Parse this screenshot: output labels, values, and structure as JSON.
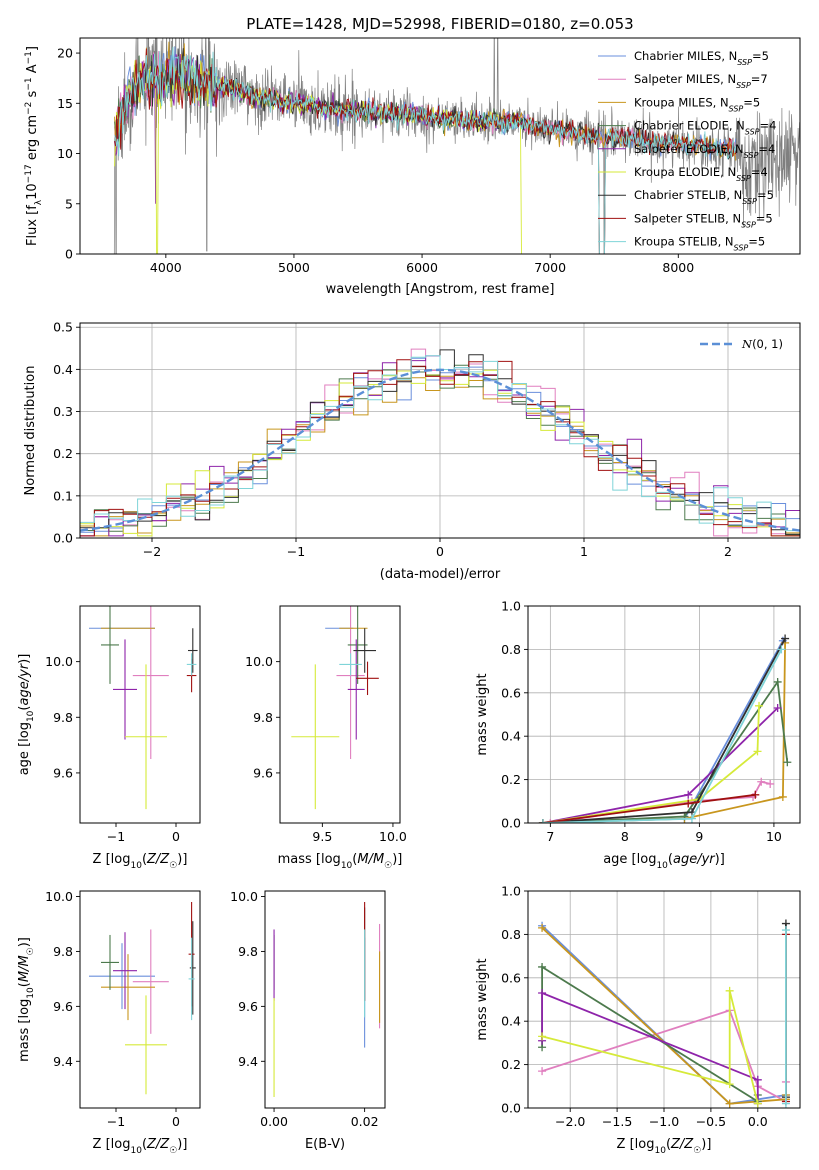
{
  "figure": {
    "title": "PLATE=1428, MJD=52998, FIBERID=0180, z=0.053"
  },
  "model_colors": {
    "Chabrier MILES": "#6a8fdc",
    "Salpeter MILES": "#e07fbf",
    "Kroupa MILES": "#c8961e",
    "Chabrier ELODIE": "#4d7a4d",
    "Salpeter ELODIE": "#8e24aa",
    "Kroupa ELODIE": "#d6ea3a",
    "Chabrier STELIB": "#2f2f2f",
    "Salpeter STELIB": "#a01010",
    "Kroupa STELIB": "#7fd4d8",
    "data": "#7f7f7f",
    "overlay_orange": "#e8742a",
    "gaussian": "#5b8fd6"
  },
  "chart_data": [
    {
      "id": "spectrum",
      "type": "line",
      "title": "PLATE=1428, MJD=52998, FIBERID=0180, z=0.053",
      "xlabel": "wavelength [Angstrom, rest frame]",
      "ylabel": "Flux [f_λ 10^-17 erg cm^-2 s^-1 A^-1]",
      "xlim": [
        3330,
        8950
      ],
      "ylim": [
        0,
        21.5
      ],
      "xticks": [
        4000,
        5000,
        6000,
        7000,
        8000
      ],
      "yticks": [
        0,
        5,
        10,
        15,
        20
      ],
      "grid": false,
      "legend_position": "top-right",
      "legend": [
        {
          "label": "Chabrier MILES, N",
          "sub": "SSP",
          "suffix": "=5",
          "color": "#6a8fdc"
        },
        {
          "label": "Salpeter MILES, N",
          "sub": "SSP",
          "suffix": "=7",
          "color": "#e07fbf"
        },
        {
          "label": "Kroupa MILES, N",
          "sub": "SSP",
          "suffix": "=5",
          "color": "#c8961e"
        },
        {
          "label": "Chabrier ELODIE, N",
          "sub": "SSP",
          "suffix": "=4",
          "color": "#4d7a4d"
        },
        {
          "label": "Salpeter ELODIE, N",
          "sub": "SSP",
          "suffix": "=4",
          "color": "#8e24aa"
        },
        {
          "label": "Kroupa ELODIE, N",
          "sub": "SSP",
          "suffix": "=4",
          "color": "#d6ea3a"
        },
        {
          "label": "Chabrier STELIB, N",
          "sub": "SSP",
          "suffix": "=5",
          "color": "#2f2f2f"
        },
        {
          "label": "Salpeter STELIB, N",
          "sub": "SSP",
          "suffix": "=5",
          "color": "#a01010"
        },
        {
          "label": "Kroupa STELIB, N",
          "sub": "SSP",
          "suffix": "=5",
          "color": "#7fd4d8"
        }
      ],
      "continuum": [
        [
          3600,
          11.5
        ],
        [
          3700,
          15.5
        ],
        [
          3800,
          17.0
        ],
        [
          3900,
          17.5
        ],
        [
          3950,
          16.5
        ],
        [
          4000,
          18.0
        ],
        [
          4100,
          17.8
        ],
        [
          4300,
          16.8
        ],
        [
          4500,
          16.6
        ],
        [
          4700,
          15.6
        ],
        [
          4900,
          15.2
        ],
        [
          5100,
          14.9
        ],
        [
          5300,
          14.4
        ],
        [
          5500,
          14.3
        ],
        [
          5700,
          14.0
        ],
        [
          5900,
          13.9
        ],
        [
          6100,
          13.6
        ],
        [
          6300,
          13.3
        ],
        [
          6500,
          13.2
        ],
        [
          6700,
          13.2
        ],
        [
          6900,
          12.7
        ],
        [
          7100,
          12.2
        ],
        [
          7300,
          11.8
        ],
        [
          7400,
          11.6
        ],
        [
          7600,
          11.6
        ],
        [
          7800,
          11.1
        ],
        [
          8000,
          11.0
        ],
        [
          8200,
          10.8
        ],
        [
          8400,
          10.4
        ]
      ],
      "data_range": [
        3580,
        9200
      ],
      "model_range": [
        3600,
        8450
      ]
    },
    {
      "id": "residuals",
      "type": "histogram",
      "xlabel": "(data-model)/error",
      "ylabel": "Normed distribution",
      "xlim": [
        -2.5,
        2.5
      ],
      "ylim": [
        0,
        0.51
      ],
      "xticks": [
        -2,
        -1,
        0,
        1,
        2
      ],
      "yticks": [
        0.0,
        0.1,
        0.2,
        0.3,
        0.4,
        0.5
      ],
      "grid": true,
      "legend_position": "top-right",
      "gaussian_label": "N(0,1)",
      "bins": 50
    },
    {
      "id": "age-vs-Z",
      "type": "errorbar",
      "xlabel": "Z [log10(Z/Z☉)]",
      "ylabel": "age [log10(age/yr)]",
      "xlim": [
        -1.6,
        0.4
      ],
      "ylim": [
        9.42,
        10.2
      ],
      "xticks": [
        -1,
        0
      ],
      "yticks": [
        9.6,
        9.8,
        10.0
      ],
      "grid": false,
      "points": [
        {
          "model": "Chabrier MILES",
          "x": -0.9,
          "y": 10.12,
          "xerr": 0.55,
          "yerr": 0.0
        },
        {
          "model": "Salpeter MILES",
          "x": -0.42,
          "y": 9.95,
          "xerr": 0.3,
          "yerr": 0.3
        },
        {
          "model": "Kroupa MILES",
          "x": -0.8,
          "y": 10.12,
          "xerr": 0.45,
          "yerr": 0.0
        },
        {
          "model": "Chabrier ELODIE",
          "x": -1.1,
          "y": 10.06,
          "xerr": 0.15,
          "yerr": 0.14
        },
        {
          "model": "Salpeter ELODIE",
          "x": -0.85,
          "y": 9.9,
          "xerr": 0.2,
          "yerr": 0.18
        },
        {
          "model": "Kroupa ELODIE",
          "x": -0.5,
          "y": 9.73,
          "xerr": 0.35,
          "yerr": 0.26
        },
        {
          "model": "Chabrier STELIB",
          "x": 0.28,
          "y": 10.04,
          "xerr": 0.08,
          "yerr": 0.08
        },
        {
          "model": "Salpeter STELIB",
          "x": 0.26,
          "y": 9.95,
          "xerr": 0.08,
          "yerr": 0.06
        },
        {
          "model": "Kroupa STELIB",
          "x": 0.26,
          "y": 9.99,
          "xerr": 0.08,
          "yerr": 0.04
        }
      ]
    },
    {
      "id": "age-vs-mass",
      "type": "errorbar",
      "xlabel": "mass [log10(M/M☉)]",
      "ylabel": "",
      "xlim": [
        9.2,
        10.05
      ],
      "ylim": [
        9.42,
        10.2
      ],
      "xticks": [
        9.5,
        10.0
      ],
      "yticks": [
        9.6,
        9.8,
        10.0
      ],
      "grid": false,
      "points": [
        {
          "model": "Chabrier MILES",
          "x": 9.62,
          "y": 10.12,
          "xerr": 0.1,
          "yerr": 0.0
        },
        {
          "model": "Salpeter MILES",
          "x": 9.7,
          "y": 9.95,
          "xerr": 0.1,
          "yerr": 0.3
        },
        {
          "model": "Kroupa MILES",
          "x": 9.72,
          "y": 10.12,
          "xerr": 0.1,
          "yerr": 0.0
        },
        {
          "model": "Chabrier ELODIE",
          "x": 9.75,
          "y": 10.06,
          "xerr": 0.07,
          "yerr": 0.14
        },
        {
          "model": "Salpeter ELODIE",
          "x": 9.74,
          "y": 9.9,
          "xerr": 0.06,
          "yerr": 0.18
        },
        {
          "model": "Kroupa ELODIE",
          "x": 9.45,
          "y": 9.73,
          "xerr": 0.17,
          "yerr": 0.26
        },
        {
          "model": "Chabrier STELIB",
          "x": 9.8,
          "y": 10.04,
          "xerr": 0.08,
          "yerr": 0.08
        },
        {
          "model": "Salpeter STELIB",
          "x": 9.82,
          "y": 9.94,
          "xerr": 0.08,
          "yerr": 0.06
        },
        {
          "model": "Kroupa STELIB",
          "x": 9.7,
          "y": 9.99,
          "xerr": 0.08,
          "yerr": 0.04
        }
      ]
    },
    {
      "id": "mass-weight-vs-age",
      "type": "line",
      "xlabel": "age [log10(age/yr)]",
      "ylabel": "mass weight",
      "xlim": [
        6.7,
        10.35
      ],
      "ylim": [
        0,
        1.0
      ],
      "xticks": [
        7,
        8,
        9,
        10
      ],
      "yticks": [
        0.0,
        0.2,
        0.4,
        0.6,
        0.8,
        1.0
      ],
      "grid": true,
      "series": [
        {
          "model": "Chabrier MILES",
          "x": [
            6.9,
            8.8,
            10.12
          ],
          "y": [
            0.0,
            0.02,
            0.84
          ]
        },
        {
          "model": "Salpeter MILES",
          "x": [
            7.0,
            8.9,
            9.72,
            9.83,
            9.95
          ],
          "y": [
            0.0,
            0.1,
            0.12,
            0.19,
            0.18
          ]
        },
        {
          "model": "Kroupa MILES",
          "x": [
            6.9,
            8.8,
            10.12,
            10.15
          ],
          "y": [
            0.0,
            0.02,
            0.12,
            0.83
          ]
        },
        {
          "model": "Chabrier ELODIE",
          "x": [
            6.9,
            8.8,
            10.05,
            10.18
          ],
          "y": [
            0.0,
            0.03,
            0.65,
            0.28
          ]
        },
        {
          "model": "Salpeter ELODIE",
          "x": [
            6.9,
            8.85,
            10.05
          ],
          "y": [
            0.0,
            0.13,
            0.53
          ]
        },
        {
          "model": "Kroupa ELODIE",
          "x": [
            6.9,
            9.0,
            9.78,
            9.8
          ],
          "y": [
            0.0,
            0.11,
            0.33,
            0.54
          ]
        },
        {
          "model": "Chabrier STELIB",
          "x": [
            6.9,
            8.9,
            10.15
          ],
          "y": [
            0.0,
            0.05,
            0.85
          ]
        },
        {
          "model": "Salpeter STELIB",
          "x": [
            6.9,
            8.85,
            9.75
          ],
          "y": [
            0.0,
            0.09,
            0.13
          ]
        },
        {
          "model": "Kroupa STELIB",
          "x": [
            6.9,
            8.9,
            10.1
          ],
          "y": [
            0.0,
            0.02,
            0.8
          ]
        }
      ]
    },
    {
      "id": "mass-vs-Z",
      "type": "errorbar",
      "xlabel": "Z [log10(Z/Z☉)]",
      "ylabel": "mass [log10(M/M☉)]",
      "xlim": [
        -1.6,
        0.4
      ],
      "ylim": [
        9.23,
        10.02
      ],
      "xticks": [
        -1,
        0
      ],
      "yticks": [
        9.4,
        9.6,
        9.8,
        10.0
      ],
      "grid": false,
      "points": [
        {
          "model": "Chabrier MILES",
          "x": -0.9,
          "y": 9.71,
          "xerr": 0.55,
          "yerr": 0.12
        },
        {
          "model": "Salpeter MILES",
          "x": -0.42,
          "y": 9.69,
          "xerr": 0.3,
          "yerr": 0.19
        },
        {
          "model": "Kroupa MILES",
          "x": -0.8,
          "y": 9.67,
          "xerr": 0.45,
          "yerr": 0.12
        },
        {
          "model": "Chabrier ELODIE",
          "x": -1.1,
          "y": 9.76,
          "xerr": 0.15,
          "yerr": 0.1
        },
        {
          "model": "Salpeter ELODIE",
          "x": -0.85,
          "y": 9.73,
          "xerr": 0.2,
          "yerr": 0.14
        },
        {
          "model": "Kroupa ELODIE",
          "x": -0.5,
          "y": 9.46,
          "xerr": 0.35,
          "yerr": 0.18
        },
        {
          "model": "Chabrier STELIB",
          "x": 0.28,
          "y": 9.74,
          "xerr": 0.05,
          "yerr": 0.17
        },
        {
          "model": "Salpeter STELIB",
          "x": 0.26,
          "y": 9.79,
          "xerr": 0.05,
          "yerr": 0.19
        },
        {
          "model": "Kroupa STELIB",
          "x": 0.26,
          "y": 9.7,
          "xerr": 0.05,
          "yerr": 0.15
        }
      ]
    },
    {
      "id": "mass-vs-ebv",
      "type": "errorbar",
      "xlabel": "E(B-V)",
      "ylabel": "",
      "xlim": [
        -0.002,
        0.0245
      ],
      "ylim": [
        9.23,
        10.02
      ],
      "xticks": [
        0.0,
        0.02
      ],
      "yticks": [
        9.4,
        9.6,
        9.8,
        10.0
      ],
      "grid": false,
      "points": [
        {
          "model": "Chabrier MILES",
          "x": 0.02,
          "y": 9.65,
          "xerr": 0.0,
          "yerr": 0.2
        },
        {
          "model": "Salpeter MILES",
          "x": 0.0233,
          "y": 9.71,
          "xerr": 0.0,
          "yerr": 0.19
        },
        {
          "model": "Kroupa MILES",
          "x": 0.0233,
          "y": 9.67,
          "xerr": 0.0,
          "yerr": 0.13
        },
        {
          "model": "Chabrier ELODIE",
          "x": 0.0,
          "y": 9.76,
          "xerr": 0.0,
          "yerr": 0.1
        },
        {
          "model": "Salpeter ELODIE",
          "x": 0.0,
          "y": 9.75,
          "xerr": 0.0,
          "yerr": 0.13
        },
        {
          "model": "Kroupa ELODIE",
          "x": 0.0,
          "y": 9.45,
          "xerr": 0.0,
          "yerr": 0.18
        },
        {
          "model": "Chabrier STELIB",
          "x": 0.02,
          "y": 9.79,
          "xerr": 0.0,
          "yerr": 0.17
        },
        {
          "model": "Salpeter STELIB",
          "x": 0.02,
          "y": 9.8,
          "xerr": 0.0,
          "yerr": 0.18
        },
        {
          "model": "Kroupa STELIB",
          "x": 0.02,
          "y": 9.72,
          "xerr": 0.0,
          "yerr": 0.16
        }
      ]
    },
    {
      "id": "mass-weight-vs-Z",
      "type": "line",
      "xlabel": "Z [log10(Z/Z☉)]",
      "ylabel": "mass weight",
      "xlim": [
        -2.45,
        0.45
      ],
      "ylim": [
        0,
        1.0
      ],
      "xticks": [
        -2.0,
        -1.5,
        -1.0,
        -0.5,
        0.0
      ],
      "yticks": [
        0.0,
        0.2,
        0.4,
        0.6,
        0.8,
        1.0
      ],
      "grid": true,
      "series": [
        {
          "model": "Chabrier MILES",
          "x": [
            -2.3,
            -0.3,
            0.3,
            0.3
          ],
          "y": [
            0.84,
            0.02,
            0.06,
            0.05
          ]
        },
        {
          "model": "Salpeter MILES",
          "x": [
            -2.3,
            -0.3,
            0.0,
            0.3,
            0.3
          ],
          "y": [
            0.17,
            0.45,
            0.1,
            0.03,
            0.12
          ]
        },
        {
          "model": "Kroupa MILES",
          "x": [
            -2.3,
            -0.3,
            0.3,
            0.3
          ],
          "y": [
            0.83,
            0.02,
            0.04,
            0.06
          ]
        },
        {
          "model": "Chabrier ELODIE",
          "x": [
            -2.3,
            -2.3,
            0.0,
            0.0
          ],
          "y": [
            0.28,
            0.65,
            0.03,
            0.06
          ]
        },
        {
          "model": "Salpeter ELODIE",
          "x": [
            -2.3,
            -2.3,
            0.0,
            0.0
          ],
          "y": [
            0.31,
            0.53,
            0.13,
            0.02
          ]
        },
        {
          "model": "Kroupa ELODIE",
          "x": [
            -2.3,
            -0.3,
            -0.3,
            0.0
          ],
          "y": [
            0.33,
            0.11,
            0.54,
            0.02
          ]
        },
        {
          "model": "Chabrier STELIB",
          "x": [
            0.3,
            0.3
          ],
          "y": [
            0.05,
            0.85
          ]
        },
        {
          "model": "Salpeter STELIB",
          "x": [
            0.3,
            0.3
          ],
          "y": [
            0.03,
            0.8
          ]
        },
        {
          "model": "Kroupa STELIB",
          "x": [
            0.3,
            0.3
          ],
          "y": [
            0.02,
            0.82
          ]
        }
      ]
    }
  ]
}
